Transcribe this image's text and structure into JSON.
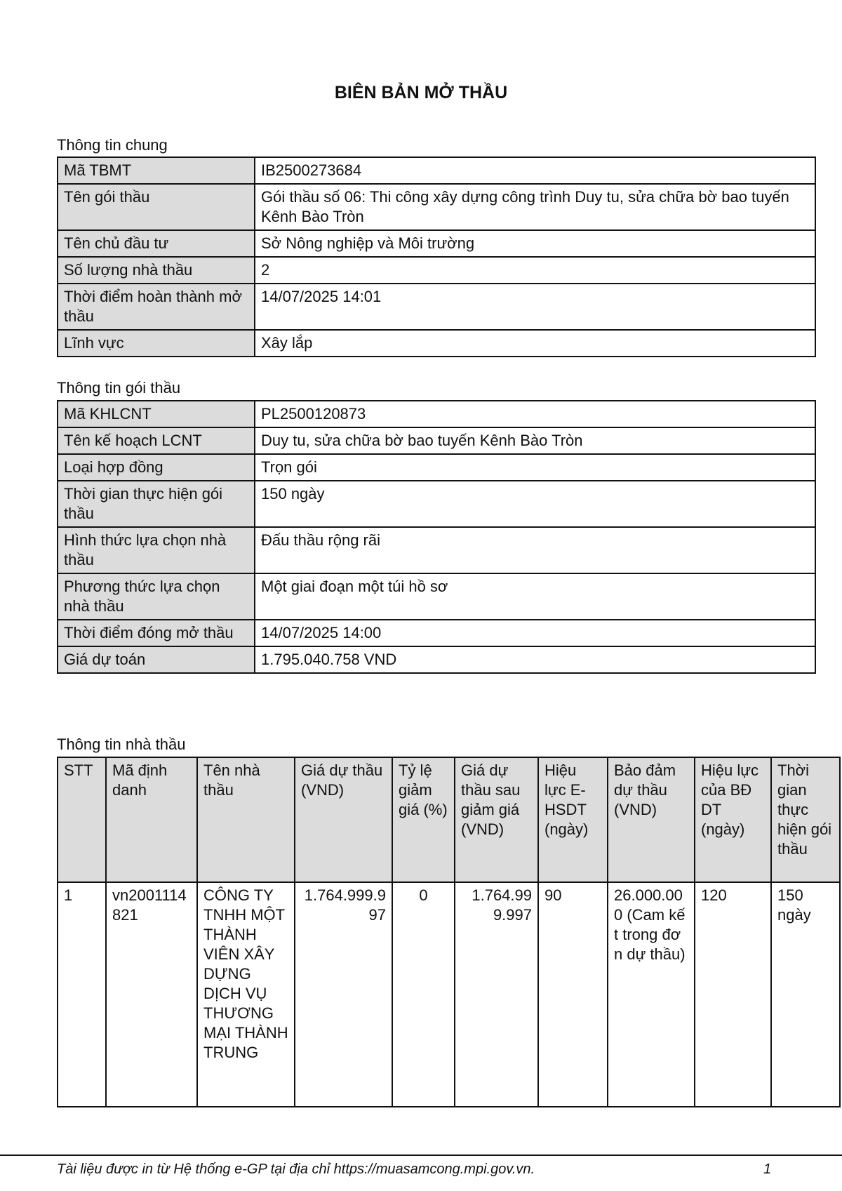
{
  "title": "BIÊN BẢN MỞ THẦU",
  "general": {
    "label": "Thông tin chung",
    "rows": [
      {
        "k": "Mã TBMT",
        "v": "IB2500273684"
      },
      {
        "k": "Tên gói thầu",
        "v": "Gói thầu số 06: Thi công xây dựng công trình Duy tu, sửa chữa bờ bao tuyến Kênh Bào Tròn"
      },
      {
        "k": "Tên chủ đầu tư",
        "v": "Sở Nông nghiệp và Môi trường"
      },
      {
        "k": "Số lượng nhà thầu",
        "v": "2"
      },
      {
        "k": "Thời điểm hoàn thành mở thầu",
        "v": "14/07/2025 14:01"
      },
      {
        "k": "Lĩnh vực",
        "v": "Xây lắp"
      }
    ]
  },
  "package": {
    "label": "Thông tin gói thầu",
    "rows": [
      {
        "k": "Mã KHLCNT",
        "v": "PL2500120873"
      },
      {
        "k": "Tên kế hoạch LCNT",
        "v": "Duy tu, sửa chữa bờ bao tuyến Kênh Bào Tròn"
      },
      {
        "k": "Loại hợp đồng",
        "v": "Trọn gói"
      },
      {
        "k": "Thời gian thực hiện gói thầu",
        "v": "150 ngày"
      },
      {
        "k": "Hình thức lựa chọn nhà thầu",
        "v": "Đấu thầu rộng rãi"
      },
      {
        "k": "Phương thức lựa chọn nhà thầu",
        "v": "Một giai đoạn một túi hồ sơ"
      },
      {
        "k": "Thời điểm đóng mở thầu",
        "v": "14/07/2025 14:00"
      },
      {
        "k": "Giá dự toán",
        "v": "1.795.040.758 VND"
      }
    ]
  },
  "bidders": {
    "label": "Thông tin nhà thầu",
    "headers": [
      "STT",
      "Mã định danh",
      "Tên nhà thầu",
      "Giá dự thầu (VND)",
      "Tỷ lệ giảm giá (%)",
      "Giá dự thầu sau giảm giá (VND)",
      "Hiệu lực E-HSDT (ngày)",
      "Bảo đảm dự thầu (VND)",
      "Hiệu lực của BĐ DT (ngày)",
      "Thời gian thực hiện gói thầu"
    ],
    "rows": [
      [
        "1",
        "vn2001114821",
        "CÔNG TY TNHH MỘT THÀNH VIÊN XÂY DỰNG DỊCH VỤ THƯƠNG MẠI THÀNH TRUNG",
        "1.764.999.997",
        "0",
        "1.764.999.997",
        "90",
        "26.000.000 (Cam kết trong đơn dự thầu)",
        "120",
        "150 ngày"
      ]
    ]
  },
  "footer": {
    "text": "Tài liệu được in từ Hệ thống e-GP tại địa chỉ https://muasamcong.mpi.gov.vn.",
    "page": "1"
  }
}
